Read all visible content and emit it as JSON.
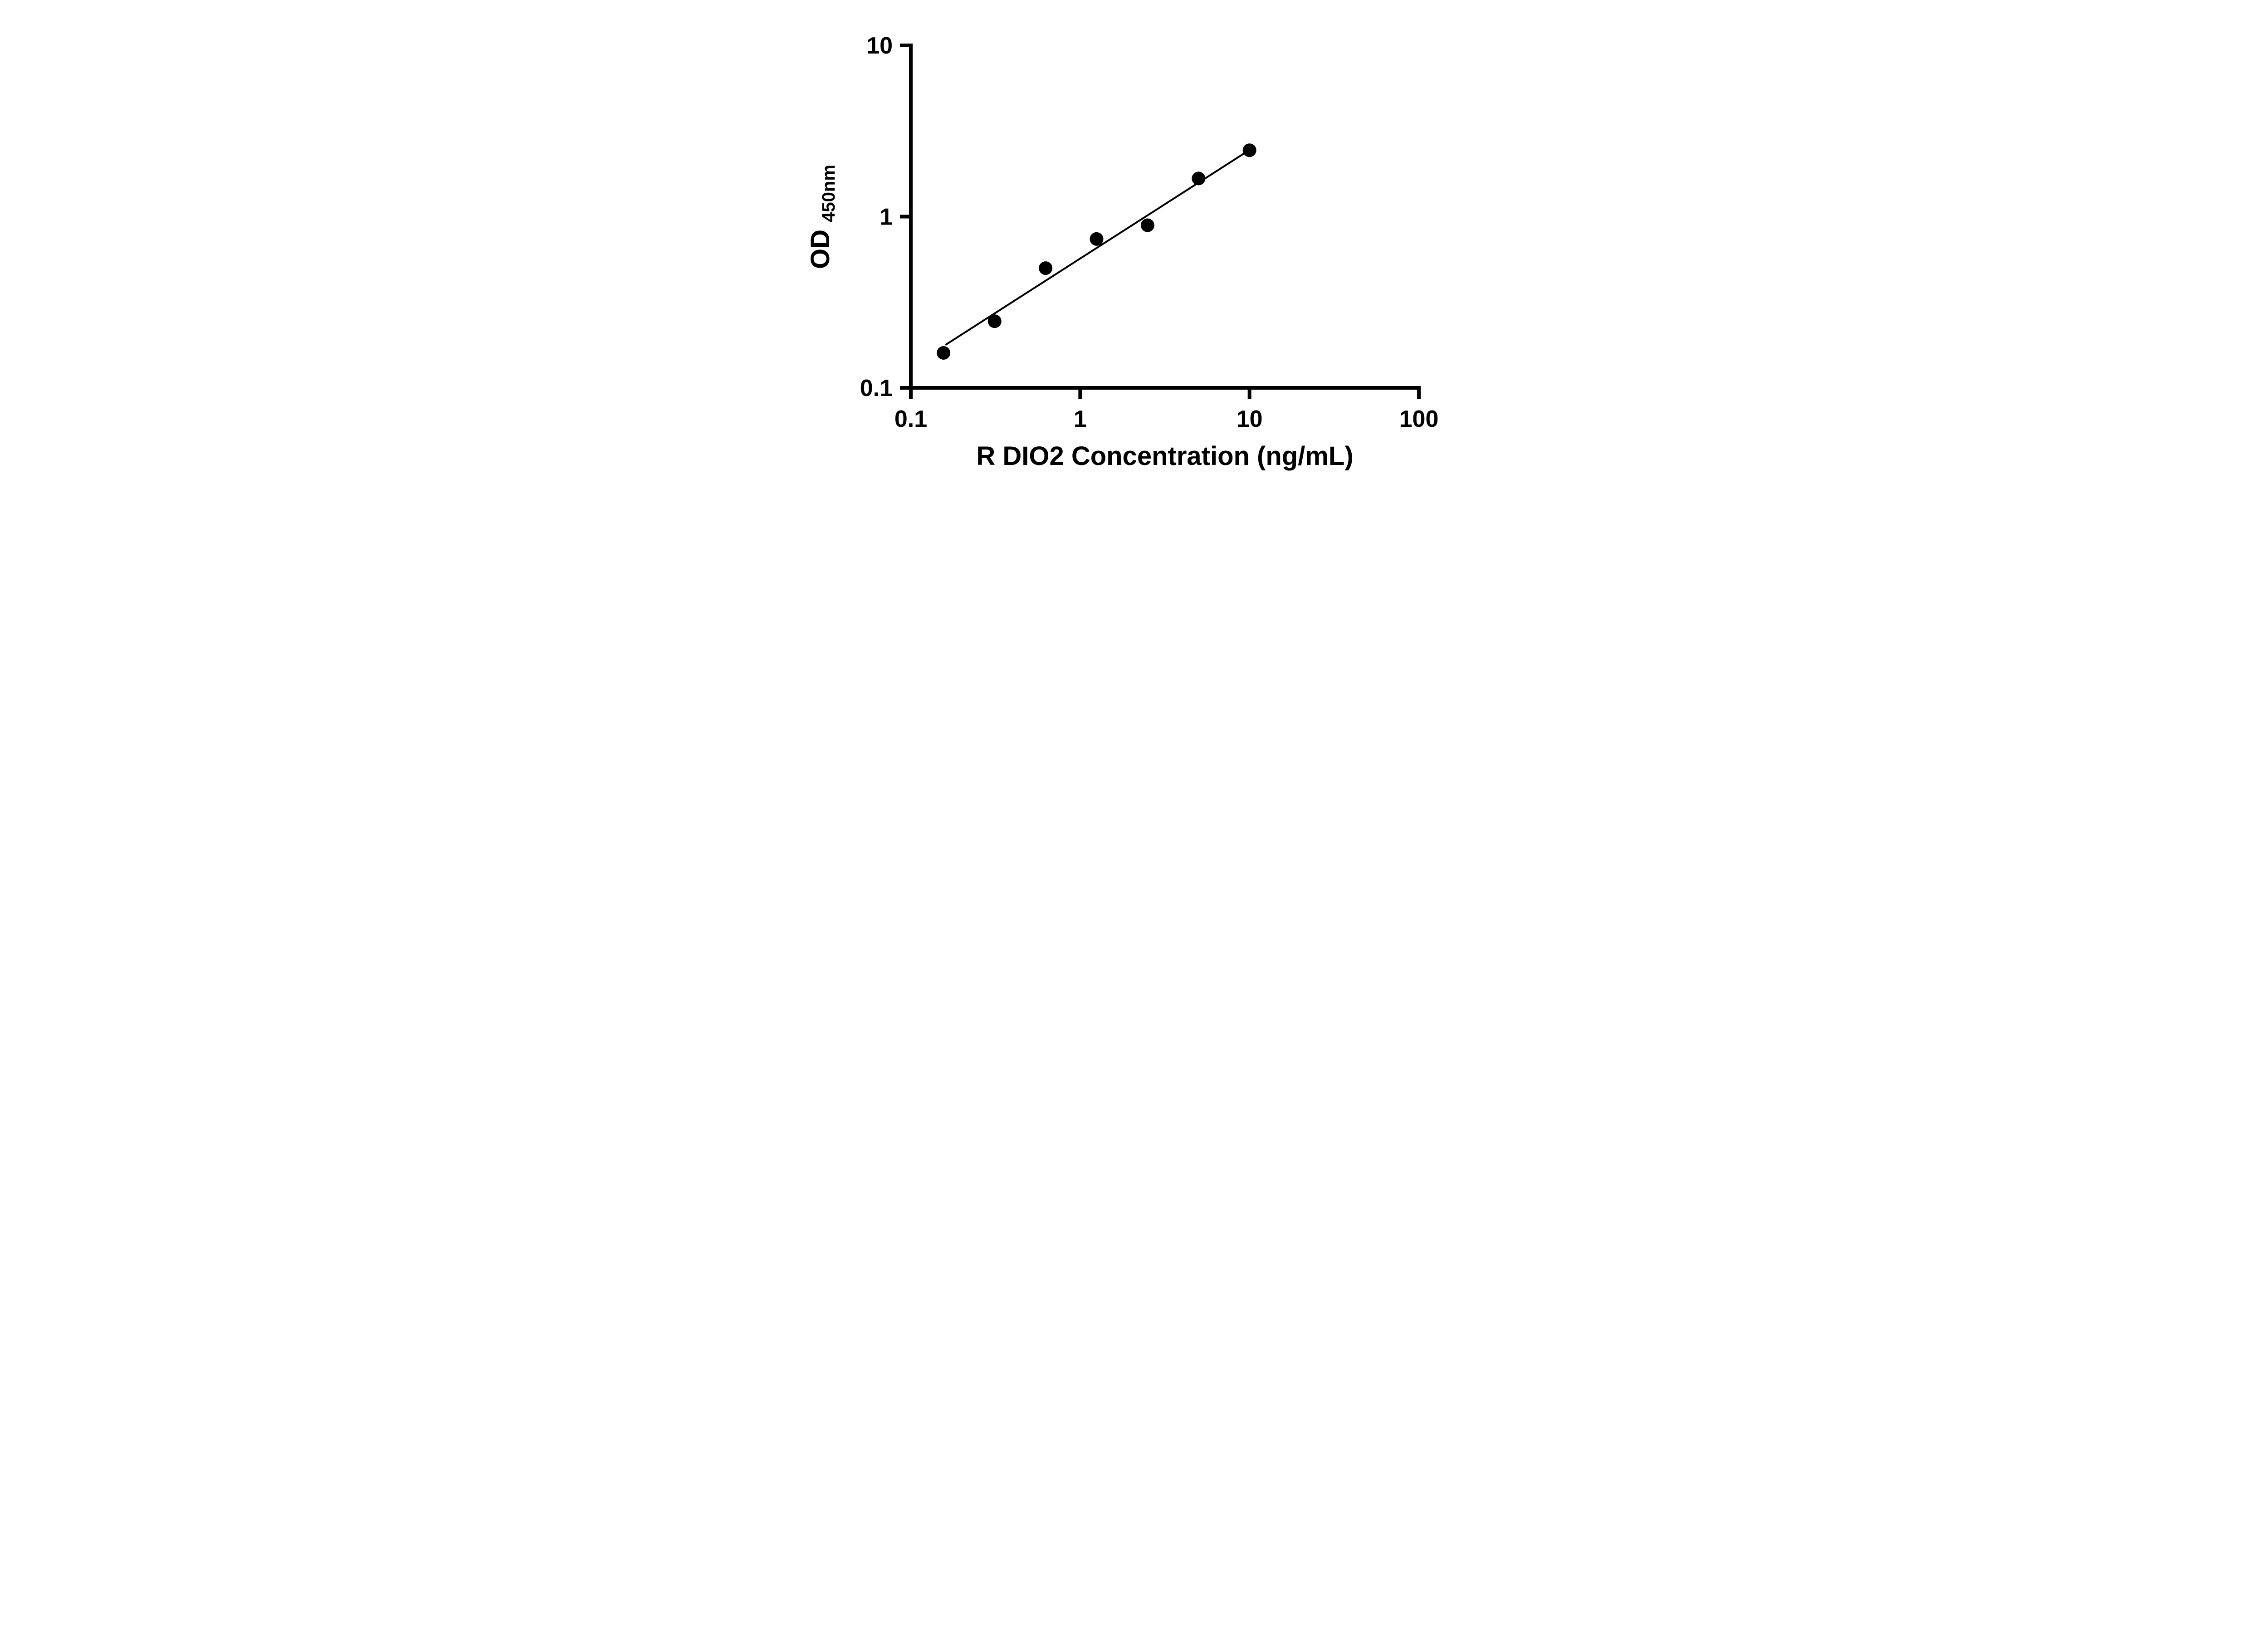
{
  "chart_data": {
    "type": "scatter",
    "title": "",
    "xlabel": "R DIO2 Concentration (ng/mL)",
    "ylabel": {
      "main": "OD",
      "sub": "450nm"
    },
    "x_scale": "log",
    "y_scale": "log",
    "xlim": [
      0.1,
      100
    ],
    "ylim": [
      0.1,
      10
    ],
    "x_ticks": [
      0.1,
      1,
      10,
      100
    ],
    "x_tick_labels": [
      "0.1",
      "1",
      "10",
      "100"
    ],
    "y_ticks": [
      0.1,
      1,
      10
    ],
    "y_tick_labels": [
      "0.1",
      "1",
      "10"
    ],
    "grid": false,
    "legend": null,
    "marker_color": "#000000",
    "line_color": "#000000",
    "series": [
      {
        "name": "standard-curve-points",
        "type": "scatter",
        "marker": "circle",
        "color": "#000000",
        "x": [
          0.156,
          0.3125,
          0.625,
          1.25,
          2.5,
          5,
          10
        ],
        "y": [
          0.16,
          0.245,
          0.5,
          0.74,
          0.89,
          1.67,
          2.44
        ]
      },
      {
        "name": "fit-line",
        "type": "line",
        "color": "#000000",
        "x": [
          0.16,
          10
        ],
        "y": [
          0.178,
          2.45
        ]
      }
    ]
  }
}
